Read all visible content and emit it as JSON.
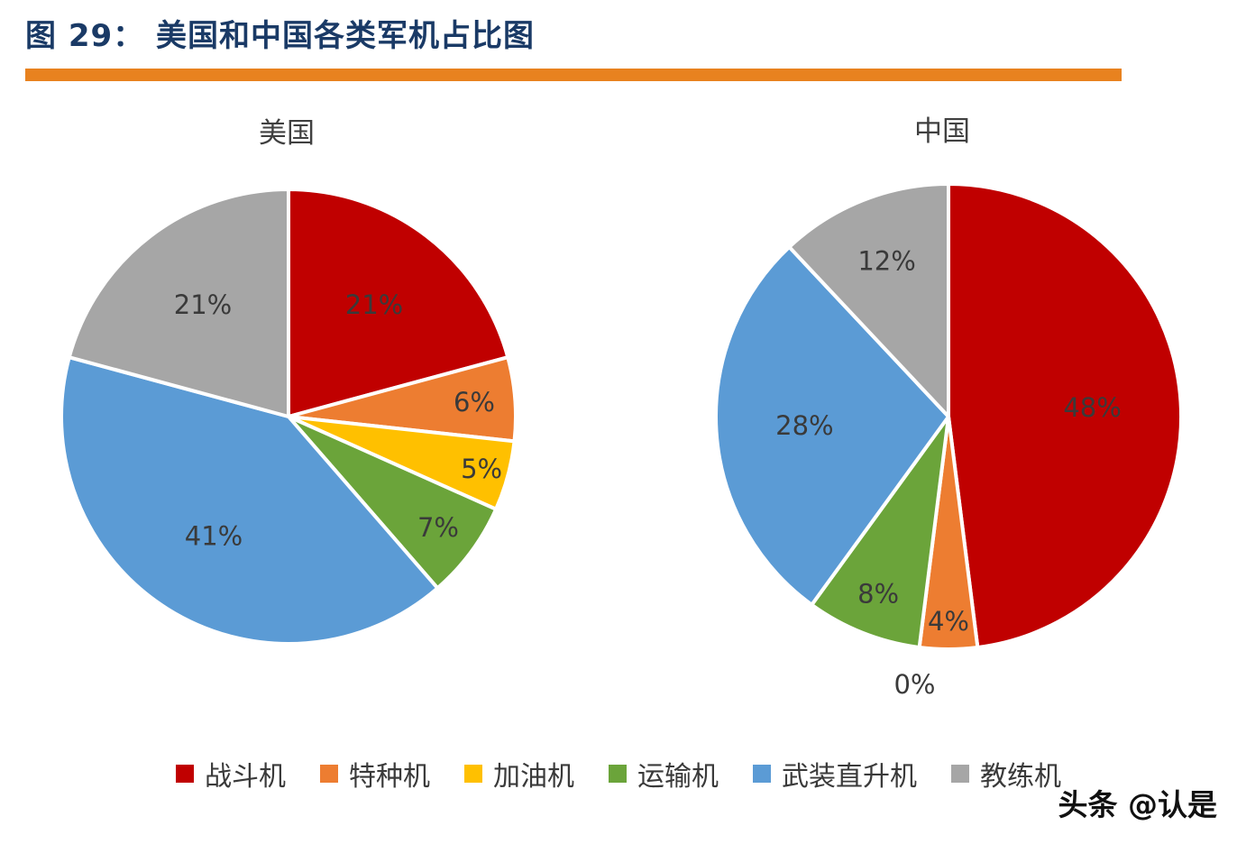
{
  "figure": {
    "title": "图 29： 美国和中国各类军机占比图",
    "watermark": "头条 @认是"
  },
  "colors": {
    "fighter_red": "#C00000",
    "special_orange": "#ED7D31",
    "tanker_yellow": "#FFC000",
    "transport_green": "#6BA43A",
    "helicopter_blue": "#5B9BD5",
    "trainer_gray": "#A6A6A6",
    "divider_orange": "#E8821F",
    "title_navy": "#1A3A66"
  },
  "chart_data": [
    {
      "type": "pie",
      "title": "美国",
      "categories": [
        "战斗机",
        "特种机",
        "加油机",
        "运输机",
        "武装直升机",
        "教练机"
      ],
      "values": [
        21,
        6,
        5,
        7,
        41,
        21
      ],
      "labels": [
        "21%",
        "6%",
        "5%",
        "7%",
        "41%",
        "21%"
      ],
      "colors": [
        "#C00000",
        "#ED7D31",
        "#FFC000",
        "#6BA43A",
        "#5B9BD5",
        "#A6A6A6"
      ],
      "start_angle_deg": 0,
      "direction": "clockwise",
      "legend_position": "bottom"
    },
    {
      "type": "pie",
      "title": "中国",
      "categories": [
        "战斗机",
        "特种机",
        "加油机",
        "运输机",
        "武装直升机",
        "教练机"
      ],
      "values": [
        48,
        4,
        0,
        8,
        28,
        12
      ],
      "labels": [
        "48%",
        "4%",
        "0%",
        "8%",
        "28%",
        "12%"
      ],
      "colors": [
        "#C00000",
        "#ED7D31",
        "#FFC000",
        "#6BA43A",
        "#5B9BD5",
        "#A6A6A6"
      ],
      "start_angle_deg": 0,
      "direction": "clockwise",
      "legend_position": "bottom"
    }
  ],
  "legend": {
    "items": [
      {
        "label": "战斗机",
        "color": "#C00000"
      },
      {
        "label": "特种机",
        "color": "#ED7D31"
      },
      {
        "label": "加油机",
        "color": "#FFC000"
      },
      {
        "label": "运输机",
        "color": "#6BA43A"
      },
      {
        "label": "武装直升机",
        "color": "#5B9BD5"
      },
      {
        "label": "教练机",
        "color": "#A6A6A6"
      }
    ]
  }
}
